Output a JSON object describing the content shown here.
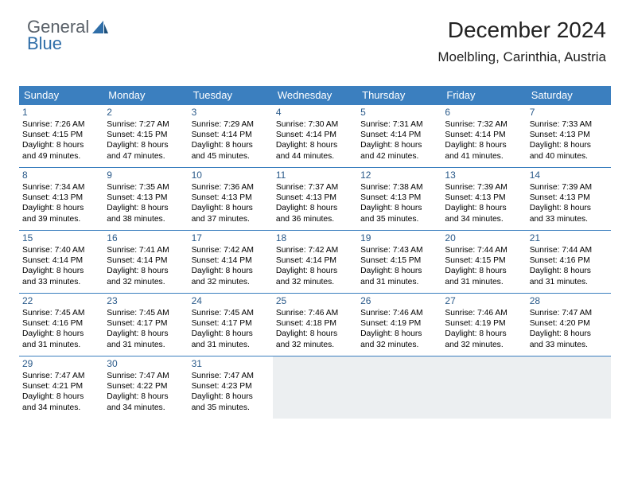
{
  "brand": {
    "part1": "General",
    "part2": "Blue"
  },
  "title": "December 2024",
  "location": "Moelbling, Carinthia, Austria",
  "header_bg": "#3b7fbf",
  "day_headers": [
    "Sunday",
    "Monday",
    "Tuesday",
    "Wednesday",
    "Thursday",
    "Friday",
    "Saturday"
  ],
  "weeks": [
    [
      {
        "n": "1",
        "sr": "Sunrise: 7:26 AM",
        "ss": "Sunset: 4:15 PM",
        "d1": "Daylight: 8 hours",
        "d2": "and 49 minutes."
      },
      {
        "n": "2",
        "sr": "Sunrise: 7:27 AM",
        "ss": "Sunset: 4:15 PM",
        "d1": "Daylight: 8 hours",
        "d2": "and 47 minutes."
      },
      {
        "n": "3",
        "sr": "Sunrise: 7:29 AM",
        "ss": "Sunset: 4:14 PM",
        "d1": "Daylight: 8 hours",
        "d2": "and 45 minutes."
      },
      {
        "n": "4",
        "sr": "Sunrise: 7:30 AM",
        "ss": "Sunset: 4:14 PM",
        "d1": "Daylight: 8 hours",
        "d2": "and 44 minutes."
      },
      {
        "n": "5",
        "sr": "Sunrise: 7:31 AM",
        "ss": "Sunset: 4:14 PM",
        "d1": "Daylight: 8 hours",
        "d2": "and 42 minutes."
      },
      {
        "n": "6",
        "sr": "Sunrise: 7:32 AM",
        "ss": "Sunset: 4:14 PM",
        "d1": "Daylight: 8 hours",
        "d2": "and 41 minutes."
      },
      {
        "n": "7",
        "sr": "Sunrise: 7:33 AM",
        "ss": "Sunset: 4:13 PM",
        "d1": "Daylight: 8 hours",
        "d2": "and 40 minutes."
      }
    ],
    [
      {
        "n": "8",
        "sr": "Sunrise: 7:34 AM",
        "ss": "Sunset: 4:13 PM",
        "d1": "Daylight: 8 hours",
        "d2": "and 39 minutes."
      },
      {
        "n": "9",
        "sr": "Sunrise: 7:35 AM",
        "ss": "Sunset: 4:13 PM",
        "d1": "Daylight: 8 hours",
        "d2": "and 38 minutes."
      },
      {
        "n": "10",
        "sr": "Sunrise: 7:36 AM",
        "ss": "Sunset: 4:13 PM",
        "d1": "Daylight: 8 hours",
        "d2": "and 37 minutes."
      },
      {
        "n": "11",
        "sr": "Sunrise: 7:37 AM",
        "ss": "Sunset: 4:13 PM",
        "d1": "Daylight: 8 hours",
        "d2": "and 36 minutes."
      },
      {
        "n": "12",
        "sr": "Sunrise: 7:38 AM",
        "ss": "Sunset: 4:13 PM",
        "d1": "Daylight: 8 hours",
        "d2": "and 35 minutes."
      },
      {
        "n": "13",
        "sr": "Sunrise: 7:39 AM",
        "ss": "Sunset: 4:13 PM",
        "d1": "Daylight: 8 hours",
        "d2": "and 34 minutes."
      },
      {
        "n": "14",
        "sr": "Sunrise: 7:39 AM",
        "ss": "Sunset: 4:13 PM",
        "d1": "Daylight: 8 hours",
        "d2": "and 33 minutes."
      }
    ],
    [
      {
        "n": "15",
        "sr": "Sunrise: 7:40 AM",
        "ss": "Sunset: 4:14 PM",
        "d1": "Daylight: 8 hours",
        "d2": "and 33 minutes."
      },
      {
        "n": "16",
        "sr": "Sunrise: 7:41 AM",
        "ss": "Sunset: 4:14 PM",
        "d1": "Daylight: 8 hours",
        "d2": "and 32 minutes."
      },
      {
        "n": "17",
        "sr": "Sunrise: 7:42 AM",
        "ss": "Sunset: 4:14 PM",
        "d1": "Daylight: 8 hours",
        "d2": "and 32 minutes."
      },
      {
        "n": "18",
        "sr": "Sunrise: 7:42 AM",
        "ss": "Sunset: 4:14 PM",
        "d1": "Daylight: 8 hours",
        "d2": "and 32 minutes."
      },
      {
        "n": "19",
        "sr": "Sunrise: 7:43 AM",
        "ss": "Sunset: 4:15 PM",
        "d1": "Daylight: 8 hours",
        "d2": "and 31 minutes."
      },
      {
        "n": "20",
        "sr": "Sunrise: 7:44 AM",
        "ss": "Sunset: 4:15 PM",
        "d1": "Daylight: 8 hours",
        "d2": "and 31 minutes."
      },
      {
        "n": "21",
        "sr": "Sunrise: 7:44 AM",
        "ss": "Sunset: 4:16 PM",
        "d1": "Daylight: 8 hours",
        "d2": "and 31 minutes."
      }
    ],
    [
      {
        "n": "22",
        "sr": "Sunrise: 7:45 AM",
        "ss": "Sunset: 4:16 PM",
        "d1": "Daylight: 8 hours",
        "d2": "and 31 minutes."
      },
      {
        "n": "23",
        "sr": "Sunrise: 7:45 AM",
        "ss": "Sunset: 4:17 PM",
        "d1": "Daylight: 8 hours",
        "d2": "and 31 minutes."
      },
      {
        "n": "24",
        "sr": "Sunrise: 7:45 AM",
        "ss": "Sunset: 4:17 PM",
        "d1": "Daylight: 8 hours",
        "d2": "and 31 minutes."
      },
      {
        "n": "25",
        "sr": "Sunrise: 7:46 AM",
        "ss": "Sunset: 4:18 PM",
        "d1": "Daylight: 8 hours",
        "d2": "and 32 minutes."
      },
      {
        "n": "26",
        "sr": "Sunrise: 7:46 AM",
        "ss": "Sunset: 4:19 PM",
        "d1": "Daylight: 8 hours",
        "d2": "and 32 minutes."
      },
      {
        "n": "27",
        "sr": "Sunrise: 7:46 AM",
        "ss": "Sunset: 4:19 PM",
        "d1": "Daylight: 8 hours",
        "d2": "and 32 minutes."
      },
      {
        "n": "28",
        "sr": "Sunrise: 7:47 AM",
        "ss": "Sunset: 4:20 PM",
        "d1": "Daylight: 8 hours",
        "d2": "and 33 minutes."
      }
    ],
    [
      {
        "n": "29",
        "sr": "Sunrise: 7:47 AM",
        "ss": "Sunset: 4:21 PM",
        "d1": "Daylight: 8 hours",
        "d2": "and 34 minutes."
      },
      {
        "n": "30",
        "sr": "Sunrise: 7:47 AM",
        "ss": "Sunset: 4:22 PM",
        "d1": "Daylight: 8 hours",
        "d2": "and 34 minutes."
      },
      {
        "n": "31",
        "sr": "Sunrise: 7:47 AM",
        "ss": "Sunset: 4:23 PM",
        "d1": "Daylight: 8 hours",
        "d2": "and 35 minutes."
      },
      {
        "empty": true
      },
      {
        "empty": true
      },
      {
        "empty": true
      },
      {
        "empty": true
      }
    ]
  ]
}
